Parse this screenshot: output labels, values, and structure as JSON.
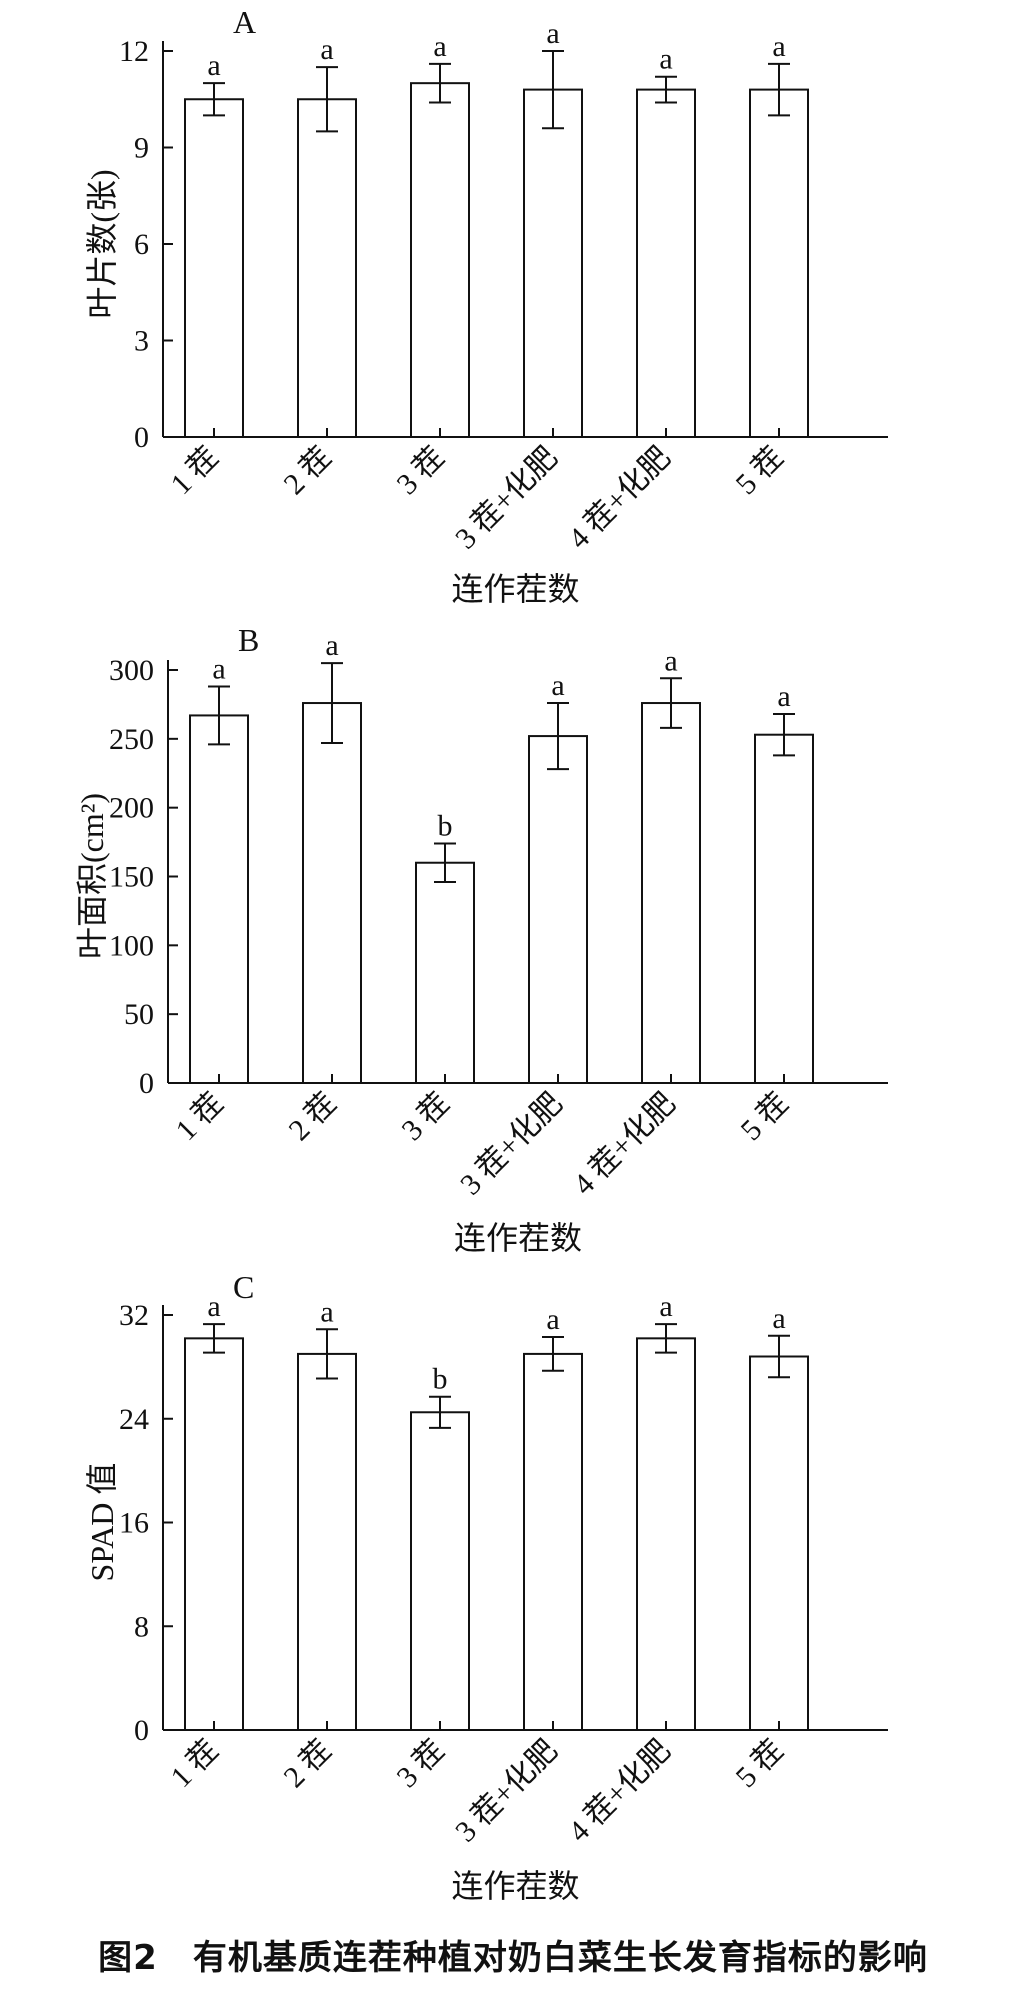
{
  "caption": "图2　有机基质连茬种植对奶白菜生长发育指标的影响",
  "chart_data": [
    {
      "type": "bar",
      "panel_label": "A",
      "categories": [
        "1 茬",
        "2 茬",
        "3 茬",
        "3 茬+化肥",
        "4 茬+化肥",
        "5 茬"
      ],
      "values": [
        10.5,
        10.5,
        11.0,
        10.8,
        10.8,
        10.8
      ],
      "errors": [
        0.5,
        1.0,
        0.6,
        1.2,
        0.4,
        0.8
      ],
      "significance": [
        "a",
        "a",
        "a",
        "a",
        "a",
        "a"
      ],
      "xlabel": "连作茬数",
      "ylabel": "叶片数(张)",
      "ylim": [
        0,
        12
      ],
      "yticks": [
        "0",
        "3",
        "6",
        "9",
        "12"
      ]
    },
    {
      "type": "bar",
      "panel_label": "B",
      "categories": [
        "1 茬",
        "2 茬",
        "3 茬",
        "3 茬+化肥",
        "4 茬+化肥",
        "5 茬"
      ],
      "values": [
        267,
        276,
        160,
        252,
        276,
        253
      ],
      "errors": [
        21,
        29,
        14,
        24,
        18,
        15
      ],
      "significance": [
        "a",
        "a",
        "b",
        "a",
        "a",
        "a"
      ],
      "xlabel": "连作茬数",
      "ylabel": "叶面积(cm²)",
      "ylim": [
        0,
        300
      ],
      "yticks": [
        "0",
        "50",
        "100",
        "150",
        "200",
        "250",
        "300"
      ]
    },
    {
      "type": "bar",
      "panel_label": "C",
      "categories": [
        "1 茬",
        "2 茬",
        "3 茬",
        "3 茬+化肥",
        "4 茬+化肥",
        "5 茬"
      ],
      "values": [
        30.2,
        29.0,
        24.5,
        29.0,
        30.2,
        28.8
      ],
      "errors": [
        1.1,
        1.9,
        1.2,
        1.3,
        1.1,
        1.6
      ],
      "significance": [
        "a",
        "a",
        "b",
        "a",
        "a",
        "a"
      ],
      "xlabel": "连作茬数",
      "ylabel": "SPAD 值",
      "ylim": [
        0,
        32
      ],
      "yticks": [
        "0",
        "8",
        "16",
        "24",
        "32"
      ]
    }
  ]
}
